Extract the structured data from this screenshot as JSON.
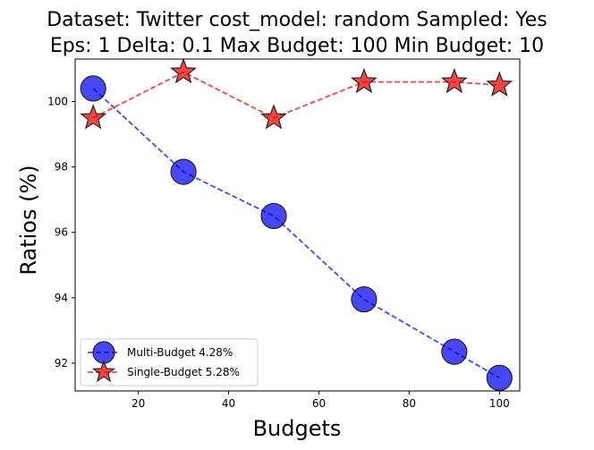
{
  "chart_data": {
    "type": "line",
    "title_lines": [
      "Dataset: Twitter cost_model: random Sampled: Yes",
      "Eps: 1 Delta: 0.1 Max Budget: 100 Min Budget: 10"
    ],
    "xlabel": "Budgets",
    "ylabel": "Ratios (%)",
    "xlim": [
      6,
      104.5
    ],
    "ylim": [
      91.15,
      101.3
    ],
    "xticks": [
      20,
      40,
      60,
      80,
      100
    ],
    "yticks": [
      92,
      94,
      96,
      98,
      100
    ],
    "x": [
      10,
      30,
      50,
      70,
      90,
      100
    ],
    "grid": false,
    "legend_position": "lower-left",
    "series": [
      {
        "name": "Multi-Budget 4.28%",
        "marker": "circle",
        "color": "#0000ee",
        "values": [
          100.4,
          97.85,
          96.5,
          93.95,
          92.35,
          91.55
        ]
      },
      {
        "name": "Single-Budget 5.28%",
        "marker": "star",
        "color": "#ee0000",
        "values": [
          99.5,
          100.9,
          99.5,
          100.6,
          100.6,
          100.5
        ]
      }
    ]
  }
}
